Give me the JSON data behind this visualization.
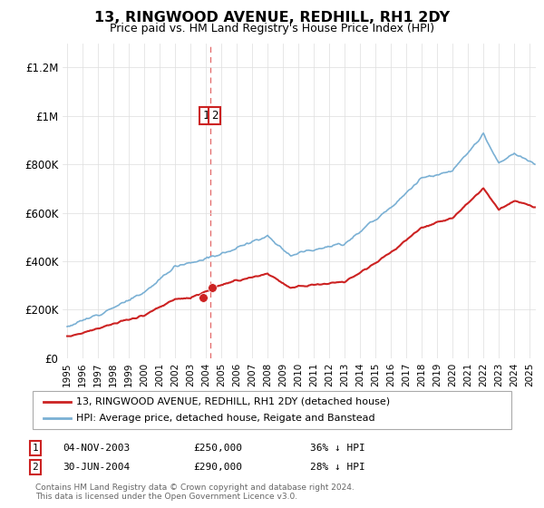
{
  "title": "13, RINGWOOD AVENUE, REDHILL, RH1 2DY",
  "subtitle": "Price paid vs. HM Land Registry's House Price Index (HPI)",
  "ylabel_ticks": [
    "£0",
    "£200K",
    "£400K",
    "£600K",
    "£800K",
    "£1M",
    "£1.2M"
  ],
  "ytick_vals": [
    0,
    200000,
    400000,
    600000,
    800000,
    1000000,
    1200000
  ],
  "ylim": [
    0,
    1300000
  ],
  "xlim_start": 1994.7,
  "xlim_end": 2025.4,
  "hpi_color": "#7ab0d4",
  "price_color": "#cc2222",
  "vline_color": "#dd4444",
  "legend_label1": "13, RINGWOOD AVENUE, REDHILL, RH1 2DY (detached house)",
  "legend_label2": "HPI: Average price, detached house, Reigate and Banstead",
  "transaction1_date": "04-NOV-2003",
  "transaction1_price": "£250,000",
  "transaction1_note": "36% ↓ HPI",
  "transaction2_date": "30-JUN-2004",
  "transaction2_price": "£290,000",
  "transaction2_note": "28% ↓ HPI",
  "footnote1": "Contains HM Land Registry data © Crown copyright and database right 2024.",
  "footnote2": "This data is licensed under the Open Government Licence v3.0.",
  "background_color": "#ffffff",
  "grid_color": "#dddddd"
}
